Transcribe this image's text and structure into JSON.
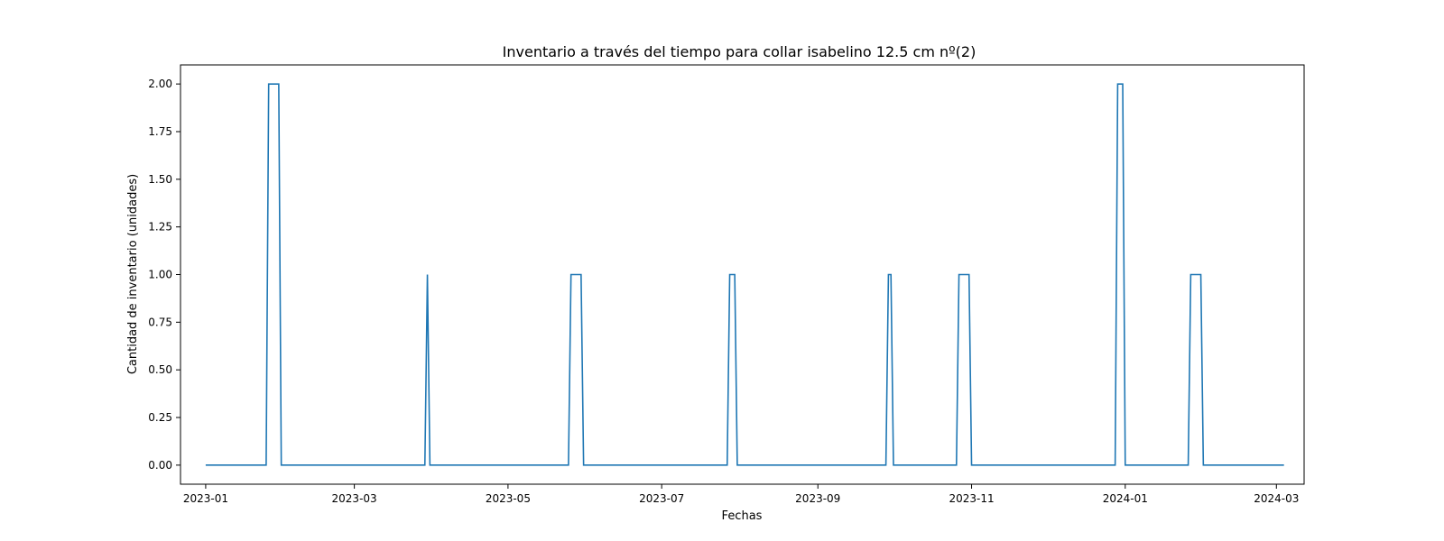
{
  "chart_data": {
    "type": "line",
    "title": "Inventario a través del tiempo para collar isabelino 12.5 cm nº(2)",
    "xlabel": "Fechas",
    "ylabel": "Cantidad de inventario (unidades)",
    "x_range": [
      "2022-12-22",
      "2024-03-12"
    ],
    "ylim": [
      -0.1,
      2.1
    ],
    "grid": false,
    "legend": "none",
    "x_ticks": [
      "2023-01",
      "2023-03",
      "2023-05",
      "2023-07",
      "2023-09",
      "2023-11",
      "2024-01",
      "2024-03"
    ],
    "y_ticks": [
      "0.00",
      "0.25",
      "0.50",
      "0.75",
      "1.00",
      "1.25",
      "1.50",
      "1.75",
      "2.00"
    ],
    "series": [
      {
        "color": "#1f77b4",
        "points": [
          [
            "2023-01-01",
            0
          ],
          [
            "2023-01-25",
            0
          ],
          [
            "2023-01-26",
            2
          ],
          [
            "2023-01-30",
            2
          ],
          [
            "2023-01-31",
            0
          ],
          [
            "2023-03-29",
            0
          ],
          [
            "2023-03-30",
            1
          ],
          [
            "2023-03-31",
            0
          ],
          [
            "2023-05-25",
            0
          ],
          [
            "2023-05-26",
            1
          ],
          [
            "2023-05-30",
            1
          ],
          [
            "2023-05-31",
            0
          ],
          [
            "2023-07-27",
            0
          ],
          [
            "2023-07-28",
            1
          ],
          [
            "2023-07-30",
            1
          ],
          [
            "2023-07-31",
            0
          ],
          [
            "2023-09-28",
            0
          ],
          [
            "2023-09-29",
            1
          ],
          [
            "2023-09-30",
            1
          ],
          [
            "2023-10-01",
            0
          ],
          [
            "2023-10-26",
            0
          ],
          [
            "2023-10-27",
            1
          ],
          [
            "2023-10-31",
            1
          ],
          [
            "2023-11-01",
            0
          ],
          [
            "2023-12-28",
            0
          ],
          [
            "2023-12-29",
            2
          ],
          [
            "2023-12-31",
            2
          ],
          [
            "2024-01-01",
            0
          ],
          [
            "2024-01-26",
            0
          ],
          [
            "2024-01-27",
            1
          ],
          [
            "2024-01-31",
            1
          ],
          [
            "2024-02-01",
            0
          ],
          [
            "2024-03-04",
            0
          ]
        ]
      }
    ]
  }
}
